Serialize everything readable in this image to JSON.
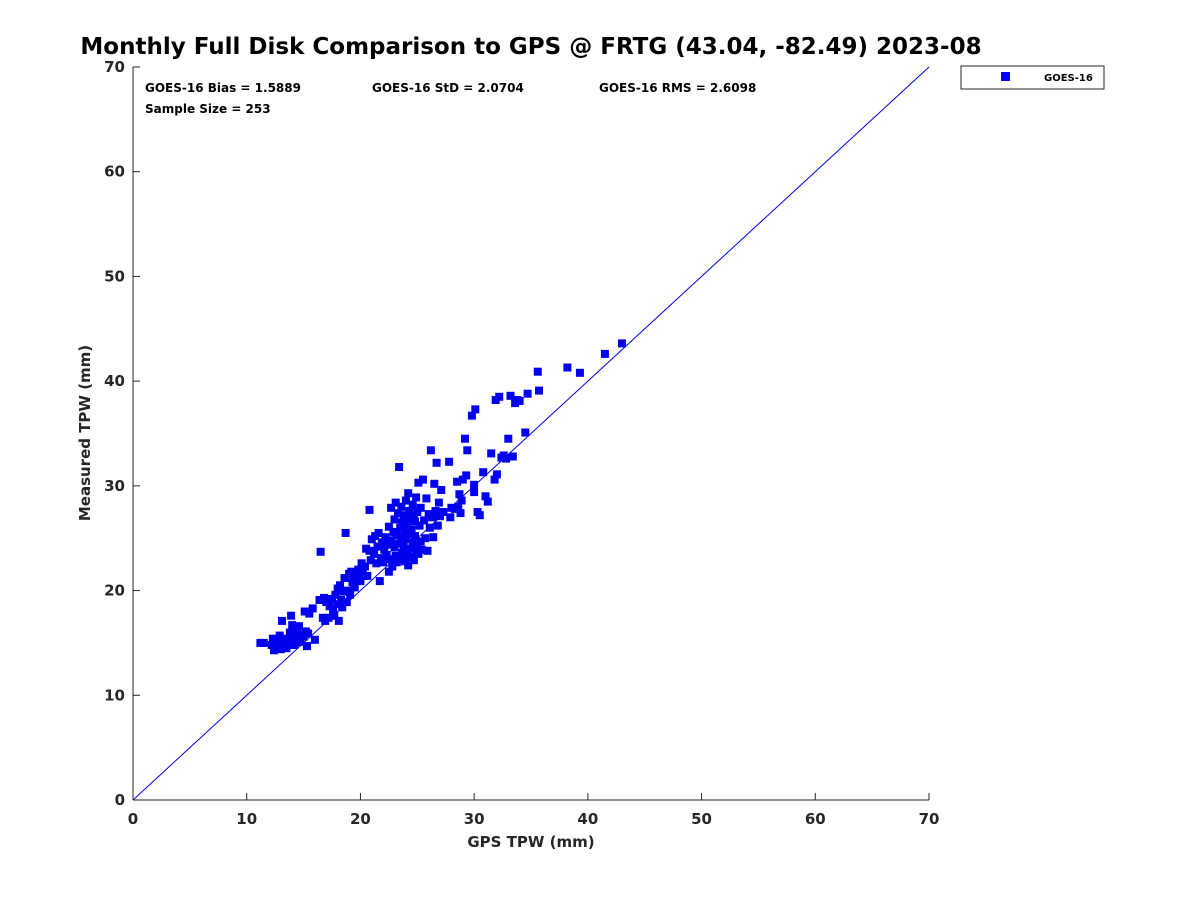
{
  "chart_data": {
    "type": "scatter",
    "title": "Monthly Full Disk Comparison to GPS @ FRTG (43.04, -82.49) 2023-08",
    "xlabel": "GPS TPW (mm)",
    "ylabel": "Measured TPW (mm)",
    "xlim": [
      0,
      70
    ],
    "ylim": [
      0,
      70
    ],
    "xticks": [
      "0",
      "10",
      "20",
      "30",
      "40",
      "50",
      "60",
      "70"
    ],
    "yticks": [
      "0",
      "10",
      "20",
      "30",
      "40",
      "50",
      "60",
      "70"
    ],
    "grid": false,
    "legend_position": "top-right outside",
    "reference_line": [
      [
        0,
        0
      ],
      [
        70,
        70
      ]
    ],
    "stats": {
      "bias": "GOES-16 Bias = 1.5889",
      "std": "GOES-16 StD = 2.0704",
      "rms": "GOES-16 RMS = 2.6098",
      "sample": "Sample Size = 253"
    },
    "series": [
      {
        "name": "GOES-16",
        "color": "#0000ee",
        "marker": "square",
        "points": [
          [
            11.2,
            15.0
          ],
          [
            11.5,
            15.0
          ],
          [
            12.2,
            14.8
          ],
          [
            12.3,
            15.4
          ],
          [
            12.4,
            14.3
          ],
          [
            12.6,
            15.2
          ],
          [
            12.8,
            14.6
          ],
          [
            12.9,
            15.7
          ],
          [
            13.0,
            14.4
          ],
          [
            13.1,
            17.1
          ],
          [
            13.2,
            15.0
          ],
          [
            13.3,
            14.9
          ],
          [
            13.4,
            15.4
          ],
          [
            13.5,
            14.5
          ],
          [
            13.7,
            15.2
          ],
          [
            13.8,
            16.0
          ],
          [
            13.9,
            17.6
          ],
          [
            14.0,
            16.7
          ],
          [
            14.1,
            15.5
          ],
          [
            14.2,
            14.8
          ],
          [
            14.3,
            15.9
          ],
          [
            14.4,
            16.2
          ],
          [
            14.5,
            15.3
          ],
          [
            14.6,
            16.6
          ],
          [
            14.7,
            15.1
          ],
          [
            14.8,
            15.8
          ],
          [
            15.0,
            15.6
          ],
          [
            15.1,
            18.0
          ],
          [
            15.2,
            16.1
          ],
          [
            15.3,
            14.7
          ],
          [
            15.4,
            15.9
          ],
          [
            15.5,
            17.8
          ],
          [
            15.8,
            18.3
          ],
          [
            16.0,
            15.3
          ],
          [
            16.4,
            19.1
          ],
          [
            16.5,
            23.7
          ],
          [
            16.7,
            17.4
          ],
          [
            16.8,
            19.3
          ],
          [
            16.9,
            17.1
          ],
          [
            17.0,
            18.9
          ],
          [
            17.2,
            17.4
          ],
          [
            17.3,
            18.5
          ],
          [
            17.5,
            19.2
          ],
          [
            17.6,
            18.1
          ],
          [
            17.7,
            17.6
          ],
          [
            17.8,
            19.6
          ],
          [
            18.0,
            18.7
          ],
          [
            18.0,
            20.2
          ],
          [
            18.1,
            17.1
          ],
          [
            18.2,
            20.5
          ],
          [
            18.3,
            19.1
          ],
          [
            18.4,
            18.4
          ],
          [
            18.5,
            19.9
          ],
          [
            18.6,
            21.2
          ],
          [
            18.7,
            25.5
          ],
          [
            18.8,
            18.9
          ],
          [
            18.9,
            20.0
          ],
          [
            19.0,
            21.6
          ],
          [
            19.1,
            19.6
          ],
          [
            19.2,
            21.8
          ],
          [
            19.3,
            20.8
          ],
          [
            19.4,
            21.3
          ],
          [
            19.5,
            20.3
          ],
          [
            19.6,
            21.7
          ],
          [
            19.7,
            21.0
          ],
          [
            19.8,
            22.0
          ],
          [
            19.9,
            21.5
          ],
          [
            20.0,
            20.9
          ],
          [
            20.1,
            22.6
          ],
          [
            20.2,
            21.9
          ],
          [
            20.4,
            22.3
          ],
          [
            20.5,
            24.0
          ],
          [
            20.6,
            21.4
          ],
          [
            20.8,
            23.8
          ],
          [
            20.8,
            27.7
          ],
          [
            20.9,
            22.9
          ],
          [
            21.0,
            24.9
          ],
          [
            21.2,
            23.5
          ],
          [
            21.3,
            25.2
          ],
          [
            21.4,
            22.6
          ],
          [
            21.5,
            24.2
          ],
          [
            21.6,
            25.5
          ],
          [
            21.7,
            20.9
          ],
          [
            21.8,
            23.1
          ],
          [
            21.9,
            24.6
          ],
          [
            22.0,
            22.7
          ],
          [
            22.1,
            23.9
          ],
          [
            22.2,
            25.1
          ],
          [
            22.3,
            23.4
          ],
          [
            22.4,
            24.4
          ],
          [
            22.5,
            26.1
          ],
          [
            22.5,
            21.8
          ],
          [
            22.6,
            23.0
          ],
          [
            22.7,
            24.8
          ],
          [
            22.7,
            27.9
          ],
          [
            22.8,
            22.3
          ],
          [
            22.9,
            25.6
          ],
          [
            23.0,
            24.1
          ],
          [
            23.0,
            26.8
          ],
          [
            23.1,
            23.3
          ],
          [
            23.1,
            28.4
          ],
          [
            23.2,
            22.7
          ],
          [
            23.2,
            25.3
          ],
          [
            23.3,
            27.4
          ],
          [
            23.4,
            24.5
          ],
          [
            23.4,
            31.8
          ],
          [
            23.5,
            26.0
          ],
          [
            23.5,
            23.0
          ],
          [
            23.6,
            25.1
          ],
          [
            23.6,
            28.0
          ],
          [
            23.7,
            23.6
          ],
          [
            23.7,
            26.5
          ],
          [
            23.8,
            24.2
          ],
          [
            23.8,
            27.2
          ],
          [
            23.9,
            22.8
          ],
          [
            23.9,
            25.7
          ],
          [
            24.0,
            24.9
          ],
          [
            24.0,
            28.6
          ],
          [
            24.1,
            23.4
          ],
          [
            24.1,
            26.3
          ],
          [
            24.2,
            22.4
          ],
          [
            24.2,
            29.3
          ],
          [
            24.3,
            25.4
          ],
          [
            24.3,
            27.6
          ],
          [
            24.4,
            24.0
          ],
          [
            24.4,
            26.9
          ],
          [
            24.5,
            23.2
          ],
          [
            24.5,
            25.8
          ],
          [
            24.6,
            28.2
          ],
          [
            24.6,
            24.6
          ],
          [
            24.7,
            27.1
          ],
          [
            24.7,
            22.9
          ],
          [
            24.8,
            25.2
          ],
          [
            24.8,
            26.6
          ],
          [
            24.9,
            23.7
          ],
          [
            24.9,
            28.9
          ],
          [
            25.0,
            24.3
          ],
          [
            25.0,
            27.5
          ],
          [
            25.1,
            30.3
          ],
          [
            25.1,
            23.5
          ],
          [
            25.2,
            26.2
          ],
          [
            25.3,
            24.7
          ],
          [
            25.3,
            27.9
          ],
          [
            25.4,
            23.9
          ],
          [
            25.5,
            30.6
          ],
          [
            25.6,
            26.7
          ],
          [
            25.7,
            25.0
          ],
          [
            25.8,
            28.8
          ],
          [
            25.9,
            23.8
          ],
          [
            26.0,
            27.3
          ],
          [
            26.1,
            26.0
          ],
          [
            26.2,
            33.4
          ],
          [
            26.3,
            27.0
          ],
          [
            26.4,
            25.1
          ],
          [
            26.5,
            30.2
          ],
          [
            26.6,
            27.6
          ],
          [
            26.7,
            32.2
          ],
          [
            26.8,
            26.2
          ],
          [
            26.9,
            28.4
          ],
          [
            27.0,
            27.1
          ],
          [
            27.1,
            29.6
          ],
          [
            27.3,
            27.5
          ],
          [
            27.8,
            32.3
          ],
          [
            27.9,
            27.0
          ],
          [
            28.0,
            27.9
          ],
          [
            28.3,
            27.8
          ],
          [
            28.5,
            30.4
          ],
          [
            28.6,
            28.0
          ],
          [
            28.7,
            29.2
          ],
          [
            28.8,
            27.4
          ],
          [
            28.9,
            28.6
          ],
          [
            29.0,
            30.6
          ],
          [
            29.2,
            34.5
          ],
          [
            29.3,
            31.0
          ],
          [
            29.4,
            33.4
          ],
          [
            29.8,
            36.7
          ],
          [
            30.0,
            29.4
          ],
          [
            30.0,
            30.1
          ],
          [
            30.1,
            37.3
          ],
          [
            30.3,
            27.5
          ],
          [
            30.5,
            27.2
          ],
          [
            30.8,
            31.3
          ],
          [
            31.0,
            29.0
          ],
          [
            31.2,
            28.5
          ],
          [
            31.5,
            33.1
          ],
          [
            31.8,
            30.6
          ],
          [
            31.9,
            38.2
          ],
          [
            32.0,
            31.1
          ],
          [
            32.2,
            38.5
          ],
          [
            32.4,
            32.7
          ],
          [
            32.6,
            32.9
          ],
          [
            32.8,
            32.6
          ],
          [
            33.0,
            34.5
          ],
          [
            33.2,
            38.6
          ],
          [
            33.4,
            32.8
          ],
          [
            33.6,
            37.9
          ],
          [
            33.8,
            38.2
          ],
          [
            34.0,
            38.1
          ],
          [
            34.5,
            35.1
          ],
          [
            34.7,
            38.8
          ],
          [
            35.6,
            40.9
          ],
          [
            35.7,
            39.1
          ],
          [
            38.2,
            41.3
          ],
          [
            39.3,
            40.8
          ],
          [
            41.5,
            42.6
          ],
          [
            43.0,
            43.6
          ]
        ]
      }
    ]
  }
}
